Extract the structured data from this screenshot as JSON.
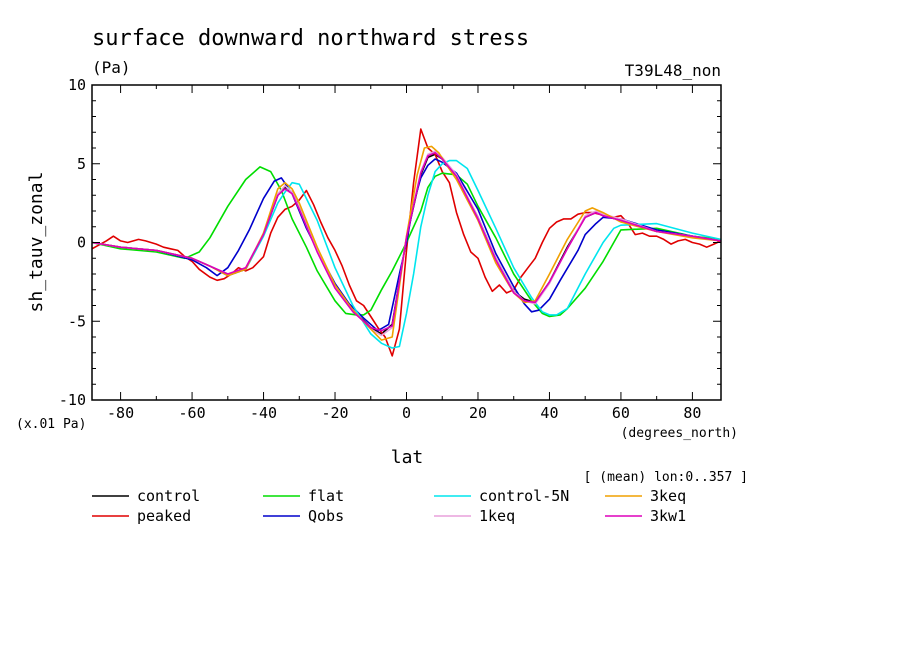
{
  "chart_data": {
    "type": "line",
    "title": "surface downward northward stress",
    "units": "(Pa)",
    "run_label": "T39L48_non",
    "xlabel": "lat",
    "x_units": "(degrees_north)",
    "ylabel": "sh_tauv_zonal",
    "y_units": "(x.01 Pa)",
    "region_note": "[ (mean) lon:0..357 ]",
    "xlim": [
      -88,
      88
    ],
    "ylim": [
      -10,
      10
    ],
    "x_ticks": [
      -80,
      -60,
      -40,
      -20,
      0,
      20,
      40,
      60,
      80
    ],
    "x_tick_labels": [
      "-80",
      "-60",
      "-40",
      "-20",
      "0",
      "20",
      "40",
      "60",
      "80"
    ],
    "y_ticks": [
      -10,
      -5,
      0,
      5,
      10
    ],
    "y_tick_labels": [
      "-10",
      "-5",
      "0",
      "5",
      "10"
    ],
    "series": [
      {
        "name": "control",
        "color": "#000000",
        "x": [
          -88,
          -80,
          -70,
          -60,
          -55,
          -50,
          -45,
          -40,
          -36,
          -34,
          -32,
          -30,
          -25,
          -20,
          -15,
          -10,
          -7,
          -4,
          0,
          4,
          6,
          8,
          10,
          14,
          20,
          25,
          30,
          33,
          36,
          40,
          45,
          50,
          53,
          55,
          60,
          70,
          80,
          88
        ],
        "y": [
          0,
          -0.3,
          -0.5,
          -1.0,
          -1.5,
          -2.1,
          -1.7,
          0.5,
          3.0,
          3.5,
          3.2,
          2.2,
          -0.5,
          -2.8,
          -4.3,
          -5.4,
          -5.8,
          -5.2,
          0.3,
          4.3,
          5.4,
          5.6,
          5.3,
          4.2,
          1.6,
          -1.0,
          -3.1,
          -3.6,
          -3.8,
          -2.5,
          -0.3,
          1.6,
          1.9,
          1.7,
          1.4,
          0.7,
          0.4,
          0.1
        ]
      },
      {
        "name": "peaked",
        "color": "#e00000",
        "x": [
          -88,
          -84,
          -82,
          -80,
          -78,
          -75,
          -73,
          -70,
          -68,
          -66,
          -64,
          -62,
          -60,
          -58,
          -55,
          -53,
          -51,
          -49,
          -47,
          -45,
          -43,
          -40,
          -38,
          -36,
          -34,
          -32,
          -30,
          -28,
          -26,
          -24,
          -22,
          -20,
          -18,
          -16,
          -14,
          -12,
          -10,
          -8,
          -6,
          -4,
          -2,
          0,
          2,
          4,
          6,
          8,
          10,
          12,
          14,
          16,
          18,
          20,
          22,
          24,
          26,
          28,
          30,
          32,
          34,
          36,
          38,
          40,
          42,
          44,
          46,
          48,
          50,
          52,
          54,
          56,
          58,
          60,
          62,
          64,
          66,
          68,
          70,
          72,
          74,
          76,
          78,
          80,
          82,
          84,
          86,
          88
        ],
        "y": [
          -0.4,
          0.1,
          0.4,
          0.1,
          0.0,
          0.2,
          0.1,
          -0.1,
          -0.3,
          -0.4,
          -0.5,
          -0.9,
          -1.2,
          -1.7,
          -2.2,
          -2.4,
          -2.3,
          -2.0,
          -1.6,
          -1.8,
          -1.6,
          -0.9,
          0.6,
          1.6,
          2.1,
          2.3,
          2.7,
          3.3,
          2.4,
          1.3,
          0.3,
          -0.5,
          -1.5,
          -2.7,
          -3.7,
          -4.0,
          -4.7,
          -5.4,
          -6.0,
          -7.2,
          -5.5,
          -0.5,
          3.8,
          7.2,
          6.0,
          5.6,
          4.5,
          3.8,
          1.9,
          0.5,
          -0.6,
          -1.0,
          -2.2,
          -3.1,
          -2.7,
          -3.2,
          -3.0,
          -2.2,
          -1.6,
          -1.0,
          0.0,
          0.9,
          1.3,
          1.5,
          1.5,
          1.8,
          1.9,
          1.9,
          1.8,
          1.6,
          1.6,
          1.7,
          1.2,
          0.5,
          0.6,
          0.4,
          0.4,
          0.2,
          -0.1,
          0.1,
          0.2,
          0.0,
          -0.1,
          -0.3,
          -0.1,
          0.1
        ]
      },
      {
        "name": "flat",
        "color": "#00dd00",
        "x": [
          -88,
          -80,
          -70,
          -62,
          -58,
          -55,
          -50,
          -45,
          -41,
          -38,
          -35,
          -32,
          -28,
          -25,
          -20,
          -17,
          -14,
          -12,
          -10,
          -7,
          -4,
          0,
          4,
          6,
          8,
          10,
          14,
          17,
          20,
          25,
          30,
          35,
          38,
          40,
          43,
          45,
          50,
          55,
          60,
          70,
          80,
          88
        ],
        "y": [
          0,
          -0.4,
          -0.6,
          -1.0,
          -0.6,
          0.3,
          2.3,
          4.0,
          4.8,
          4.5,
          3.3,
          1.5,
          -0.3,
          -1.8,
          -3.7,
          -4.5,
          -4.6,
          -4.6,
          -4.3,
          -3.0,
          -1.8,
          0.0,
          2.0,
          3.5,
          4.2,
          4.4,
          4.3,
          3.7,
          2.3,
          0.3,
          -2.0,
          -3.7,
          -4.5,
          -4.7,
          -4.6,
          -4.2,
          -2.9,
          -1.2,
          0.8,
          0.9,
          0.4,
          0.2
        ]
      },
      {
        "name": "Qobs",
        "color": "#0000cc",
        "x": [
          -88,
          -80,
          -70,
          -60,
          -56,
          -53,
          -50,
          -47,
          -44,
          -40,
          -37,
          -35,
          -32,
          -28,
          -24,
          -20,
          -16,
          -12,
          -8,
          -5,
          -2,
          0,
          2,
          4,
          6,
          8,
          10,
          14,
          20,
          25,
          30,
          33,
          35,
          37,
          40,
          43,
          48,
          50,
          53,
          55,
          60,
          70,
          80,
          88
        ],
        "y": [
          0,
          -0.3,
          -0.5,
          -1.1,
          -1.6,
          -2.1,
          -1.6,
          -0.5,
          0.8,
          2.8,
          3.9,
          4.1,
          3.1,
          0.9,
          -0.9,
          -2.6,
          -3.9,
          -4.8,
          -5.6,
          -5.2,
          -2.0,
          0.0,
          2.5,
          4.1,
          4.9,
          5.3,
          5.1,
          4.4,
          2.1,
          -0.7,
          -2.8,
          -3.9,
          -4.4,
          -4.3,
          -3.6,
          -2.4,
          -0.5,
          0.5,
          1.2,
          1.6,
          1.5,
          0.8,
          0.4,
          0.1
        ]
      },
      {
        "name": "control-5N",
        "color": "#00e5ee",
        "x": [
          -88,
          -80,
          -70,
          -60,
          -55,
          -50,
          -45,
          -40,
          -36,
          -34,
          -32,
          -30,
          -25,
          -20,
          -15,
          -10,
          -7,
          -4,
          -2,
          0,
          2,
          4,
          6,
          8,
          10,
          12,
          14,
          17,
          20,
          25,
          30,
          35,
          38,
          40,
          42,
          45,
          50,
          55,
          58,
          60,
          70,
          80,
          88
        ],
        "y": [
          0,
          -0.3,
          -0.5,
          -1.0,
          -1.5,
          -2.0,
          -1.7,
          0.4,
          2.5,
          3.2,
          3.8,
          3.7,
          1.4,
          -1.6,
          -4.0,
          -5.8,
          -6.4,
          -6.7,
          -6.6,
          -4.5,
          -2.0,
          1.0,
          3.0,
          4.5,
          5.0,
          5.2,
          5.2,
          4.7,
          3.3,
          0.9,
          -1.6,
          -3.5,
          -4.4,
          -4.6,
          -4.6,
          -4.2,
          -2.0,
          0.0,
          0.9,
          1.1,
          1.2,
          0.6,
          0.2
        ]
      },
      {
        "name": "1keq",
        "color": "#e8a0dc",
        "x": [
          -88,
          -80,
          -70,
          -60,
          -55,
          -50,
          -45,
          -40,
          -36,
          -34,
          -32,
          -30,
          -25,
          -20,
          -15,
          -10,
          -7,
          -4,
          0,
          4,
          6,
          8,
          10,
          14,
          20,
          25,
          30,
          33,
          36,
          40,
          45,
          50,
          53,
          55,
          60,
          70,
          80,
          88
        ],
        "y": [
          0,
          -0.3,
          -0.5,
          -1.0,
          -1.5,
          -2.0,
          -1.6,
          0.6,
          3.1,
          3.6,
          3.2,
          2.2,
          -0.5,
          -2.8,
          -4.3,
          -5.5,
          -5.9,
          -5.4,
          0.4,
          4.5,
          5.6,
          5.8,
          5.4,
          4.3,
          1.6,
          -1.0,
          -3.1,
          -3.7,
          -3.9,
          -2.6,
          -0.4,
          1.7,
          2.0,
          1.8,
          1.5,
          0.7,
          0.4,
          0.1
        ]
      },
      {
        "name": "3keq",
        "color": "#f0a000",
        "x": [
          -88,
          -80,
          -70,
          -60,
          -55,
          -50,
          -45,
          -40,
          -36,
          -34,
          -32,
          -30,
          -25,
          -20,
          -15,
          -10,
          -7,
          -4,
          0,
          3,
          5,
          7,
          9,
          11,
          14,
          20,
          25,
          30,
          33,
          36,
          40,
          45,
          50,
          52,
          55,
          60,
          70,
          80,
          88
        ],
        "y": [
          0,
          -0.3,
          -0.5,
          -1.0,
          -1.5,
          -2.1,
          -1.7,
          0.6,
          3.4,
          3.8,
          3.4,
          2.5,
          -0.3,
          -2.7,
          -4.3,
          -5.5,
          -6.2,
          -6.0,
          0.4,
          4.3,
          6.0,
          6.1,
          5.7,
          5.0,
          4.0,
          1.4,
          -1.3,
          -3.2,
          -3.8,
          -3.7,
          -2.0,
          0.2,
          2.0,
          2.2,
          1.9,
          1.3,
          0.7,
          0.3,
          0.1
        ]
      },
      {
        "name": "3kw1",
        "color": "#dd00bb",
        "x": [
          -88,
          -80,
          -70,
          -60,
          -55,
          -50,
          -45,
          -40,
          -36,
          -34,
          -32,
          -30,
          -25,
          -20,
          -15,
          -10,
          -7,
          -4,
          0,
          4,
          6,
          8,
          10,
          14,
          20,
          25,
          30,
          33,
          36,
          40,
          45,
          50,
          53,
          55,
          60,
          70,
          80,
          88
        ],
        "y": [
          0,
          -0.3,
          -0.5,
          -1.0,
          -1.5,
          -2.0,
          -1.6,
          0.5,
          3.0,
          3.4,
          3.1,
          2.1,
          -0.6,
          -2.9,
          -4.4,
          -5.4,
          -5.6,
          -5.3,
          0.3,
          4.4,
          5.5,
          5.7,
          5.3,
          4.2,
          1.5,
          -1.1,
          -3.2,
          -3.7,
          -3.8,
          -2.5,
          -0.4,
          1.6,
          1.9,
          1.7,
          1.4,
          0.7,
          0.4,
          0.1
        ]
      }
    ]
  }
}
